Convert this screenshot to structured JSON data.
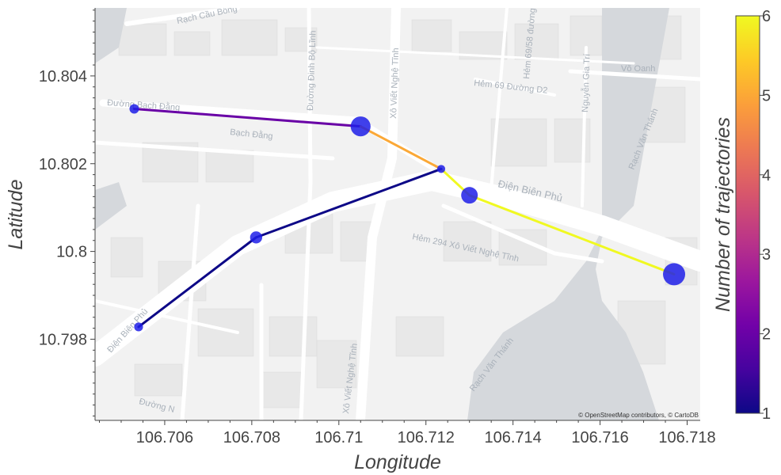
{
  "chart_data": {
    "type": "scatter",
    "title": "",
    "xlabel": "Longitude",
    "ylabel": "Latitude",
    "xlim": [
      106.7044,
      106.7183
    ],
    "ylim": [
      10.79615,
      10.80555
    ],
    "x_ticks": [
      106.706,
      106.708,
      106.71,
      106.712,
      106.714,
      106.716,
      106.718
    ],
    "x_tick_labels": [
      "106.706",
      "106.708",
      "106.71",
      "106.712",
      "106.714",
      "106.716",
      "106.718"
    ],
    "y_ticks": [
      10.798,
      10.8,
      10.802,
      10.804
    ],
    "y_tick_labels": [
      "10.798",
      "10.8",
      "10.802",
      "10.804"
    ],
    "grid": false,
    "colorbar": {
      "title": "Number of trajectories",
      "range": [
        1,
        6
      ],
      "ticks": [
        1,
        2,
        3,
        4,
        5,
        6
      ],
      "tick_labels": [
        "1",
        "2",
        "3",
        "4",
        "5",
        "6"
      ],
      "colorscale": [
        "#0d0887",
        "#46039f",
        "#7201a8",
        "#9c179e",
        "#bd3786",
        "#d8576b",
        "#ed7953",
        "#fb9f3a",
        "#fdca26",
        "#f0f921"
      ]
    },
    "segments": [
      {
        "x": [
          106.7053,
          106.7105
        ],
        "y": [
          10.80325,
          10.80285
        ],
        "count": 2
      },
      {
        "x": [
          106.7105,
          106.71235
        ],
        "y": [
          10.80285,
          10.80188
        ],
        "count": 5
      },
      {
        "x": [
          106.71235,
          106.713
        ],
        "y": [
          10.80188,
          10.80128
        ],
        "count": 6
      },
      {
        "x": [
          106.713,
          106.7177
        ],
        "y": [
          10.80128,
          10.79948
        ],
        "count": 6
      },
      {
        "x": [
          106.71235,
          106.7081
        ],
        "y": [
          10.80188,
          10.80032
        ],
        "count": 1
      },
      {
        "x": [
          106.7081,
          106.7054
        ],
        "y": [
          10.80032,
          10.79828
        ],
        "count": 1
      }
    ],
    "nodes": [
      {
        "x": 106.7053,
        "y": 10.80325,
        "weight": 1
      },
      {
        "x": 106.7105,
        "y": 10.80285,
        "weight": 7
      },
      {
        "x": 106.71235,
        "y": 10.80188,
        "weight": 0.6
      },
      {
        "x": 106.713,
        "y": 10.80128,
        "weight": 4.5
      },
      {
        "x": 106.7177,
        "y": 10.79948,
        "weight": 9
      },
      {
        "x": 106.7081,
        "y": 10.80032,
        "weight": 2
      },
      {
        "x": 106.7054,
        "y": 10.79828,
        "weight": 0.8
      }
    ],
    "node_color": "#1f1fe8"
  },
  "map": {
    "street_labels": [
      "Rạch Cầu Bông",
      "Đường Bạch Đằng",
      "Bạch Đằng",
      "Đường Đinh Bộ Lĩnh",
      "Xô Viết Nghệ Tĩnh",
      "Hẻm 69 Đường D2",
      "Hẻm 69/58 đường",
      "Nguyễn Gia Trí",
      "Võ Oanh",
      "Rạch Văn Thánh",
      "Điện Biên Phủ",
      "Hẻm 294 Xô Viết Nghệ Tĩnh",
      "Xô Viết Nghệ Tĩnh",
      "Rạch Văn Thánh",
      "Điện Biên Phủ",
      "Đường N"
    ],
    "attribution": "© OpenStreetMap contributors, © CartoDB"
  }
}
